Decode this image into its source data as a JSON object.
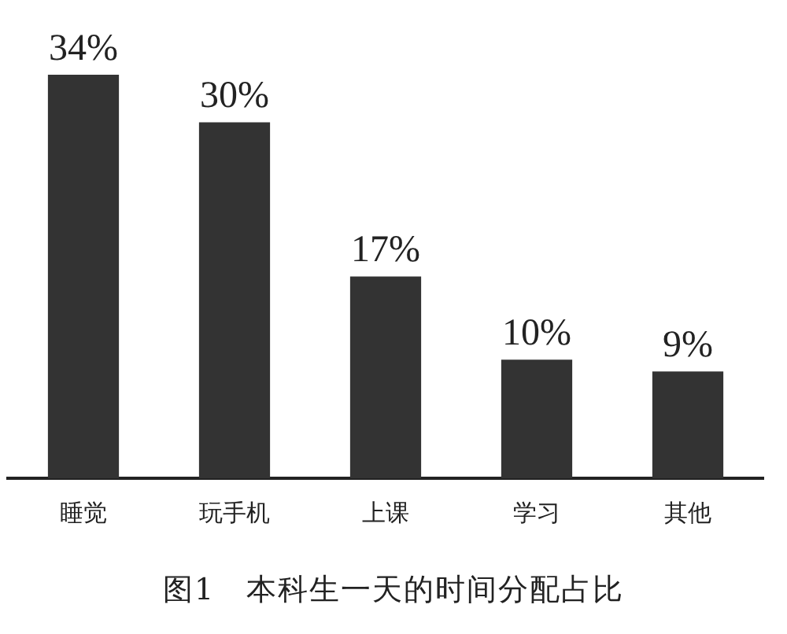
{
  "chart_data": {
    "type": "bar",
    "title": "图1　本科生一天的时间分配占比",
    "categories": [
      "睡觉",
      "玩手机",
      "上课",
      "学习",
      "其他"
    ],
    "values": [
      34,
      30,
      17,
      10,
      9
    ],
    "value_labels": [
      "34%",
      "30%",
      "17%",
      "10%",
      "9%"
    ],
    "color": "#333333",
    "grid": false,
    "legend": false
  }
}
